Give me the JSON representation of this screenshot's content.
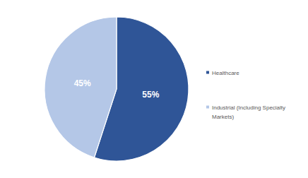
{
  "chart_data": {
    "type": "pie",
    "categories": [
      "Healthcare",
      "Industrial (Including Specialty Markets)"
    ],
    "values": [
      55,
      45
    ],
    "value_labels": [
      "55%",
      "45%"
    ],
    "colors": [
      "#2f5597",
      "#b4c7e7"
    ],
    "data_labels": true,
    "legend": "right"
  }
}
